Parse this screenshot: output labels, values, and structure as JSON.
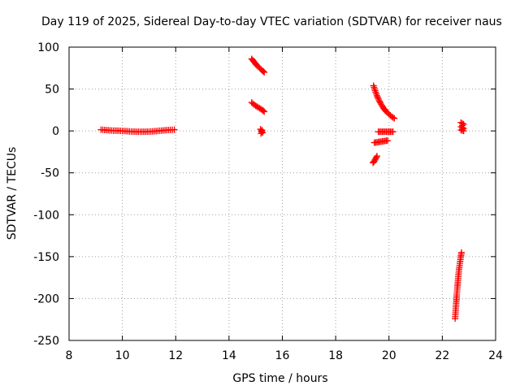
{
  "chart_data": {
    "type": "scatter",
    "title": "Day 119 of 2025, Sidereal Day-to-day VTEC variation (SDTVAR) for receiver naus",
    "xlabel": "GPS time / hours",
    "ylabel": "SDTVAR / TECUs",
    "xlim": [
      8,
      24
    ],
    "ylim": [
      -250,
      100
    ],
    "xticks": [
      8,
      10,
      12,
      14,
      16,
      18,
      20,
      22,
      24
    ],
    "yticks": [
      100,
      50,
      0,
      -50,
      -100,
      -150,
      -200,
      -250
    ],
    "grid": true,
    "marker": "+",
    "color": "#ff0000",
    "segments": [
      {
        "x": [
          9.2,
          9.4,
          9.6,
          9.8,
          10.0,
          10.2,
          10.4,
          10.6,
          10.8,
          11.0,
          11.2,
          11.4,
          11.6,
          11.8,
          11.95
        ],
        "y": [
          1.5,
          1,
          0.5,
          0.3,
          0,
          -0.4,
          -0.8,
          -1,
          -1,
          -0.8,
          -0.4,
          0.2,
          0.8,
          1.2,
          1.5
        ]
      },
      {
        "x": [
          14.85,
          14.95,
          15.05,
          15.15,
          15.25,
          15.32
        ],
        "y": [
          86,
          82,
          78,
          75,
          72,
          70
        ]
      },
      {
        "x": [
          14.85,
          14.95,
          15.05,
          15.15,
          15.25,
          15.32
        ],
        "y": [
          34,
          31,
          29,
          27,
          25,
          23
        ]
      },
      {
        "x": [
          15.18,
          15.22,
          15.26,
          15.2,
          15.24
        ],
        "y": [
          2,
          0,
          -2,
          -3,
          1
        ]
      },
      {
        "x": [
          19.42,
          19.48,
          19.55,
          19.62,
          19.7,
          19.8,
          19.9,
          20.0,
          20.1,
          20.2
        ],
        "y": [
          54,
          48,
          42,
          37,
          32,
          27,
          23,
          20,
          17,
          15
        ]
      },
      {
        "x": [
          19.6,
          19.7,
          19.8,
          19.9,
          20.0,
          20.1,
          20.15
        ],
        "y": [
          -1,
          -1,
          -1,
          -1,
          -1,
          -1,
          -1
        ]
      },
      {
        "x": [
          19.45,
          19.55,
          19.65,
          19.75,
          19.85,
          19.95
        ],
        "y": [
          -14,
          -13.5,
          -13,
          -12.5,
          -12,
          -11.5
        ]
      },
      {
        "x": [
          19.4,
          19.45,
          19.5,
          19.55
        ],
        "y": [
          -38,
          -36,
          -33,
          -30
        ]
      },
      {
        "x": [
          22.7,
          22.75,
          22.8,
          22.7,
          22.75,
          22.8,
          22.7,
          22.8
        ],
        "y": [
          10,
          9,
          8,
          5,
          4,
          3,
          1,
          0
        ]
      },
      {
        "x": [
          22.48,
          22.51,
          22.54,
          22.57,
          22.6,
          22.63,
          22.66,
          22.69,
          22.72
        ],
        "y": [
          -224,
          -210,
          -197,
          -185,
          -174,
          -165,
          -158,
          -151,
          -145
        ]
      }
    ]
  }
}
